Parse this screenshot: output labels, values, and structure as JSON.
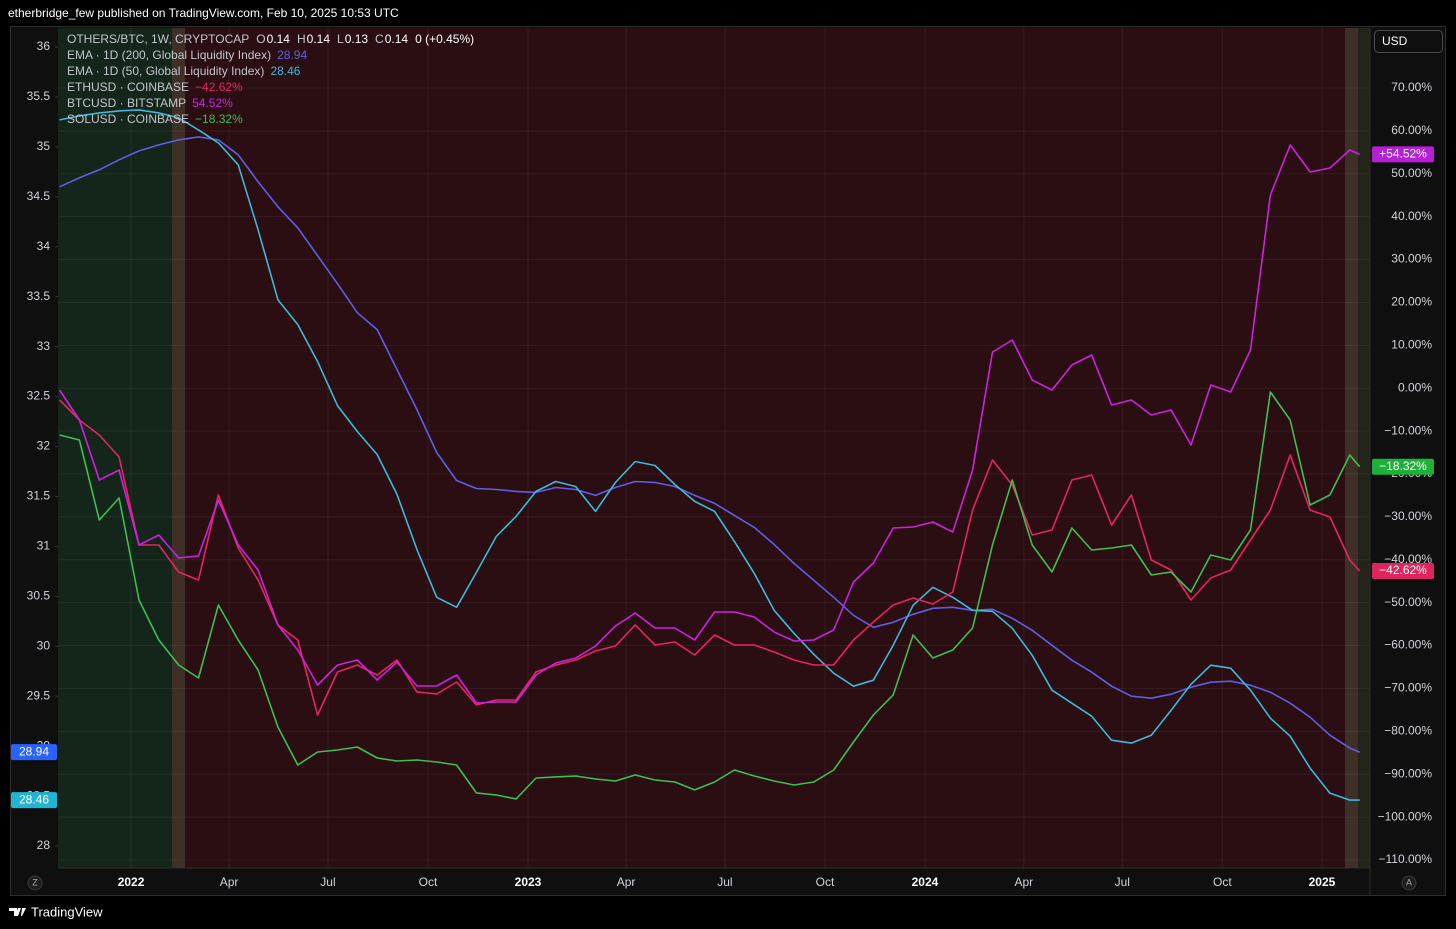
{
  "chart_data": {
    "type": "line",
    "header": "etherbridge_few published on TradingView.com, Feb 10, 2025 10:53 UTC",
    "symbol": "OTHERS/BTC, 1W, CRYPTOCAP",
    "ohlc": [
      {
        "label": "O",
        "value": 0.14
      },
      {
        "label": "H",
        "value": 0.14
      },
      {
        "label": "L",
        "value": 0.13
      },
      {
        "label": "C",
        "value": 0.14
      }
    ],
    "change": "0 (+0.45%)",
    "currency": "USD",
    "scale_buttons": [
      "Z",
      "A"
    ],
    "footer": "TradingView",
    "x": [
      2021.82,
      2021.87,
      2021.92,
      2021.97,
      2022.02,
      2022.07,
      2022.12,
      2022.17,
      2022.22,
      2022.27,
      2022.32,
      2022.37,
      2022.42,
      2022.47,
      2022.52,
      2022.57,
      2022.62,
      2022.67,
      2022.72,
      2022.77,
      2022.82,
      2022.87,
      2022.92,
      2022.97,
      2023.02,
      2023.07,
      2023.12,
      2023.17,
      2023.22,
      2023.27,
      2023.32,
      2023.37,
      2023.42,
      2023.47,
      2023.52,
      2023.57,
      2023.62,
      2023.67,
      2023.72,
      2023.77,
      2023.82,
      2023.87,
      2023.92,
      2023.97,
      2024.02,
      2024.07,
      2024.12,
      2024.17,
      2024.22,
      2024.27,
      2024.32,
      2024.37,
      2024.42,
      2024.47,
      2024.52,
      2024.57,
      2024.62,
      2024.67,
      2024.72,
      2024.77,
      2024.82,
      2024.87,
      2024.92,
      2024.97,
      2025.02,
      2025.07,
      2025.095
    ],
    "xlim": [
      2021.816,
      2025.121
    ],
    "xticks": [
      {
        "value": 2022,
        "label": "2022"
      },
      {
        "value": 2022.247,
        "label": "Apr"
      },
      {
        "value": 2022.496,
        "label": "Jul"
      },
      {
        "value": 2022.748,
        "label": "Oct"
      },
      {
        "value": 2023,
        "label": "2023"
      },
      {
        "value": 2023.247,
        "label": "Apr"
      },
      {
        "value": 2023.496,
        "label": "Jul"
      },
      {
        "value": 2023.748,
        "label": "Oct"
      },
      {
        "value": 2024,
        "label": "2024"
      },
      {
        "value": 2024.249,
        "label": "Apr"
      },
      {
        "value": 2024.497,
        "label": "Jul"
      },
      {
        "value": 2024.749,
        "label": "Oct"
      },
      {
        "value": 2025,
        "label": "2025"
      }
    ],
    "ylim": [
      27.78,
      36.19
    ],
    "yticks": [
      36,
      35.5,
      35,
      34.5,
      34,
      33.5,
      33,
      32.5,
      32,
      31.5,
      31,
      30.5,
      30,
      29.5,
      29,
      28.5,
      28
    ],
    "y2lim": [
      -111.87,
      83.99
    ],
    "y2ticks": [
      {
        "value": 70,
        "label": "70.00%"
      },
      {
        "value": 60,
        "label": "60.00%"
      },
      {
        "value": 50,
        "label": "50.00%"
      },
      {
        "value": 40,
        "label": "40.00%"
      },
      {
        "value": 30,
        "label": "30.00%"
      },
      {
        "value": 20,
        "label": "20.00%"
      },
      {
        "value": 10,
        "label": "10.00%"
      },
      {
        "value": 0,
        "label": "0.00%"
      },
      {
        "value": -10,
        "label": "−10.00%"
      },
      {
        "value": -20,
        "label": "−20.00%"
      },
      {
        "value": -30,
        "label": "−30.00%"
      },
      {
        "value": -40,
        "label": "−40.00%"
      },
      {
        "value": -50,
        "label": "−50.00%"
      },
      {
        "value": -60,
        "label": "−60.00%"
      },
      {
        "value": -70,
        "label": "−70.00%"
      },
      {
        "value": -80,
        "label": "−80.00%"
      },
      {
        "value": -90,
        "label": "−90.00%"
      },
      {
        "value": -100,
        "label": "−100.00%"
      },
      {
        "value": -110,
        "label": "−110.00%"
      }
    ],
    "grid": true,
    "bands": [
      {
        "from": 2021.816,
        "to": 2022.103,
        "color": "#14261a"
      },
      {
        "from": 2022.103,
        "to": 2022.136,
        "color": "#3e3026"
      },
      {
        "from": 2022.136,
        "to": 2025.058,
        "color": "#2a0e12"
      },
      {
        "from": 2025.058,
        "to": 2025.091,
        "color": "#3e3026"
      },
      {
        "from": 2025.091,
        "to": 2025.121,
        "color": "#23241a"
      }
    ],
    "series": [
      {
        "name": "EMA · 1D (200, Global Liquidity Index)",
        "color": "#5f5ee6",
        "axis": "y",
        "tag_color": "#2962ff",
        "values": [
          34.6,
          34.69,
          34.77,
          34.87,
          34.96,
          35.02,
          35.07,
          35.1,
          35.07,
          34.92,
          34.65,
          34.4,
          34.19,
          33.91,
          33.63,
          33.34,
          33.17,
          32.77,
          32.37,
          31.94,
          31.66,
          31.58,
          31.57,
          31.55,
          31.54,
          31.59,
          31.57,
          31.51,
          31.59,
          31.65,
          31.64,
          31.6,
          31.51,
          31.43,
          31.31,
          31.19,
          31.02,
          30.83,
          30.66,
          30.49,
          30.31,
          30.19,
          30.24,
          30.32,
          30.38,
          30.39,
          30.36,
          30.37,
          30.28,
          30.16,
          30.01,
          29.86,
          29.74,
          29.6,
          29.5,
          29.48,
          29.52,
          29.59,
          29.64,
          29.65,
          29.61,
          29.54,
          29.43,
          29.29,
          29.11,
          28.98,
          28.94
        ]
      },
      {
        "name": "EMA · 1D (50, Global Liquidity Index)",
        "color": "#3fb8d9",
        "axis": "y",
        "tag_color": "#22b5d3",
        "values": [
          35.27,
          35.31,
          35.34,
          35.36,
          35.37,
          35.34,
          35.29,
          35.17,
          35.04,
          34.82,
          34.17,
          33.47,
          33.22,
          32.85,
          32.41,
          32.15,
          31.92,
          31.52,
          30.97,
          30.49,
          30.39,
          30.74,
          31.1,
          31.3,
          31.55,
          31.65,
          31.6,
          31.35,
          31.64,
          31.85,
          31.81,
          31.62,
          31.45,
          31.35,
          31.05,
          30.73,
          30.36,
          30.13,
          29.92,
          29.73,
          29.6,
          29.66,
          30.01,
          30.41,
          30.59,
          30.49,
          30.36,
          30.35,
          30.18,
          29.91,
          29.56,
          29.43,
          29.3,
          29.06,
          29.03,
          29.11,
          29.36,
          29.62,
          29.81,
          29.78,
          29.56,
          29.28,
          29.1,
          28.78,
          28.53,
          28.46,
          28.46
        ]
      },
      {
        "name": "ETHUSD · COINBASE",
        "color": "#e8245f",
        "axis": "y2",
        "tag_color": "#e0245e",
        "legend_value": "−42.62%",
        "tag_label": "−42.62%",
        "values": [
          -2.74,
          -7.41,
          -10.91,
          -16.04,
          -36.55,
          -36.55,
          -42.85,
          -44.71,
          -24.89,
          -37.25,
          -44.71,
          -55.2,
          -58.7,
          -76.19,
          -66.16,
          -64.53,
          -66.86,
          -63.36,
          -70.82,
          -71.29,
          -68.49,
          -73.85,
          -72.69,
          -72.69,
          -66.16,
          -64.53,
          -63.36,
          -61.27,
          -60.1,
          -55.2,
          -59.87,
          -59.17,
          -62.2,
          -57.54,
          -59.87,
          -59.87,
          -61.5,
          -63.36,
          -64.53,
          -64.53,
          -58.7,
          -54.5,
          -50.54,
          -48.91,
          -50.31,
          -47.51,
          -28.39,
          -16.73,
          -22.56,
          -34.22,
          -33.05,
          -21.4,
          -20.23,
          -31.89,
          -24.89,
          -40.05,
          -42.38,
          -49.38,
          -44.25,
          -42.38,
          -35.39,
          -28.39,
          -15.57,
          -28.39,
          -30.02,
          -40.05,
          -42.62
        ]
      },
      {
        "name": "BTCUSD · BITSTAMP",
        "color": "#cc22e0",
        "axis": "y2",
        "tag_color": "#b51fd6",
        "legend_value": "54.52%",
        "tag_label": "+54.52%",
        "values": [
          -0.41,
          -7.41,
          -21.4,
          -19.07,
          -36.55,
          -34.22,
          -39.58,
          -39.11,
          -26.06,
          -36.55,
          -42.38,
          -55.2,
          -61.03,
          -69.19,
          -64.53,
          -63.36,
          -68.03,
          -63.83,
          -69.43,
          -69.43,
          -66.86,
          -73.39,
          -73.16,
          -73.16,
          -66.86,
          -64.06,
          -62.9,
          -60.1,
          -55.44,
          -52.41,
          -55.9,
          -55.9,
          -58.7,
          -52.17,
          -52.17,
          -53.34,
          -56.84,
          -58.93,
          -58.7,
          -56.37,
          -45.18,
          -40.75,
          -32.59,
          -32.36,
          -31.19,
          -33.52,
          -19.07,
          8.45,
          11.25,
          1.92,
          -0.41,
          5.42,
          7.75,
          -3.91,
          -2.74,
          -6.24,
          -5.07,
          -13.24,
          0.75,
          -0.88,
          8.91,
          45.05,
          56.71,
          50.41,
          51.35,
          55.54,
          54.52
        ]
      },
      {
        "name": "SOLUSD · COINBASE",
        "color": "#3dbf52",
        "axis": "y2",
        "tag_color": "#1fb03a",
        "legend_value": "−18.32%",
        "tag_label": "−18.32%",
        "values": [
          -10.91,
          -12.07,
          -30.72,
          -25.59,
          -49.38,
          -58.7,
          -64.53,
          -67.56,
          -50.54,
          -58.7,
          -65.7,
          -78.99,
          -87.85,
          -84.82,
          -84.35,
          -83.65,
          -86.22,
          -86.91,
          -86.68,
          -87.15,
          -87.85,
          -94.37,
          -94.84,
          -95.77,
          -90.88,
          -90.64,
          -90.41,
          -91.11,
          -91.58,
          -90.18,
          -91.34,
          -91.81,
          -93.67,
          -91.81,
          -89.01,
          -90.41,
          -91.58,
          -92.51,
          -91.81,
          -89.01,
          -82.48,
          -76.19,
          -71.52,
          -57.54,
          -62.9,
          -61.03,
          -55.9,
          -36.55,
          -21.4,
          -36.55,
          -42.85,
          -32.59,
          -37.72,
          -37.25,
          -36.55,
          -43.55,
          -42.85,
          -47.51,
          -38.88,
          -40.05,
          -33.05,
          -0.88,
          -7.41,
          -27.23,
          -24.89,
          -15.57,
          -18.32
        ]
      }
    ]
  }
}
